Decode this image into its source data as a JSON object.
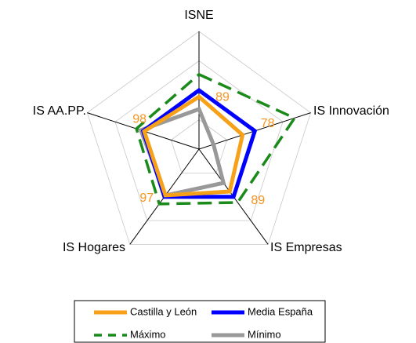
{
  "chart_data": {
    "type": "radar",
    "categories": [
      "ISNE",
      "IS Innovación",
      "IS Empresas",
      "IS Hogares",
      "IS AA.PP."
    ],
    "rlim": [
      0,
      200
    ],
    "rticks": [
      0,
      50,
      100,
      150,
      200
    ],
    "grid": true,
    "series": [
      {
        "name": "Castilla y León",
        "color": "#f7a11a",
        "values": [
          89,
          78,
          89,
          97,
          98
        ],
        "data_labels": true
      },
      {
        "name": "Media España",
        "color": "#0000ff",
        "values": [
          100,
          100,
          100,
          100,
          100
        ]
      },
      {
        "name": "Máximo",
        "color": "#1a8a1a",
        "dashed": true,
        "values": [
          127,
          171,
          112,
          115,
          112
        ]
      },
      {
        "name": "Mínimo",
        "color": "#999999",
        "values": [
          68,
          26,
          71,
          97,
          104
        ]
      }
    ]
  }
}
